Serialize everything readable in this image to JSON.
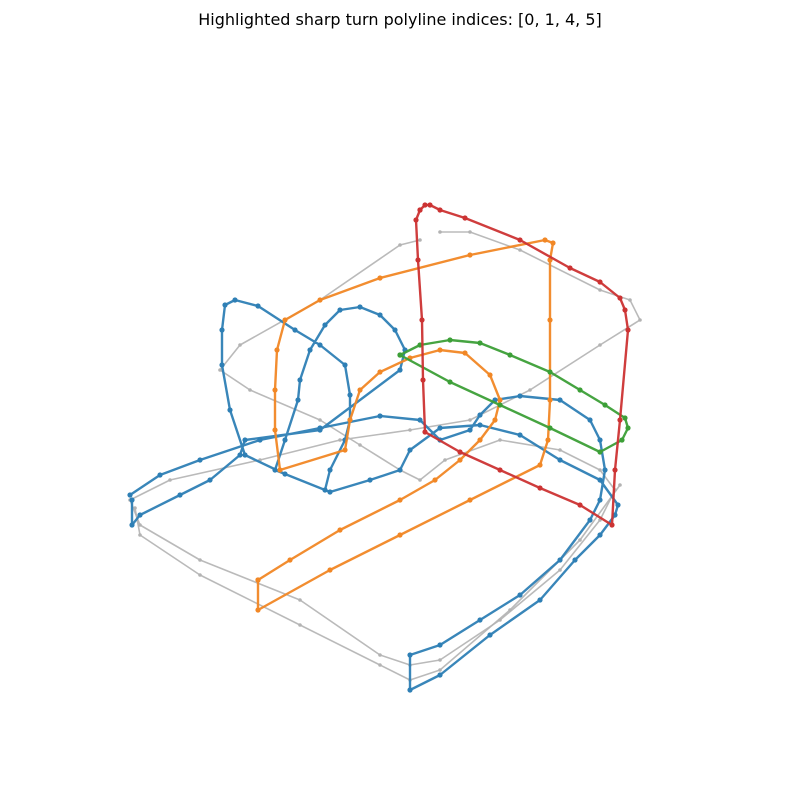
{
  "title": "Highlighted sharp turn polyline indices: [0, 1, 4, 5]",
  "colors": {
    "background": "#ffffff",
    "context": "#b3b3b3",
    "blue": "#2e7fb5",
    "orange": "#f18725",
    "green": "#3c9f37",
    "red": "#cc3333"
  },
  "polylines": [
    {
      "name": "context-polyline-a",
      "color": "context",
      "highlighted": false
    },
    {
      "name": "context-polyline-b",
      "color": "context",
      "highlighted": false
    },
    {
      "name": "blue-polyline",
      "color": "blue",
      "highlighted": true
    },
    {
      "name": "orange-polyline",
      "color": "orange",
      "highlighted": true
    },
    {
      "name": "green-polyline",
      "color": "green",
      "highlighted": true
    },
    {
      "name": "red-polyline",
      "color": "red",
      "highlighted": true
    }
  ]
}
